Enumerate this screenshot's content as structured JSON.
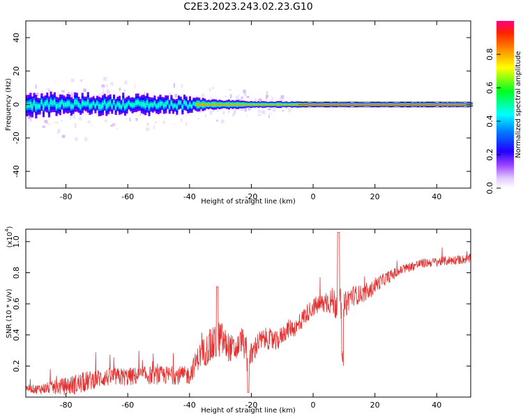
{
  "title": "C2E3.2023.243.02.23.G10",
  "chart_data": [
    {
      "type": "heatmap",
      "xlabel": "Height of straight line (km)",
      "ylabel": "Frequency (Hz)",
      "xlim": [
        -93,
        51
      ],
      "ylim": [
        -50,
        50
      ],
      "xticks": [
        -80,
        -60,
        -40,
        -20,
        0,
        20,
        40
      ],
      "yticks": [
        -40,
        -20,
        0,
        20,
        40
      ],
      "band_center_hz": 0,
      "band_halfwidth_hz": [
        [
          -93,
          6
        ],
        [
          -80,
          5
        ],
        [
          -60,
          5
        ],
        [
          -40,
          4
        ],
        [
          -35,
          3
        ],
        [
          -20,
          2
        ],
        [
          -5,
          1.5
        ],
        [
          0,
          1.2
        ],
        [
          50,
          1.2
        ]
      ],
      "colorbar": {
        "label": "Normalized spectral amplitude",
        "range": [
          0.0,
          1.0
        ],
        "ticks": [
          0.0,
          0.2,
          0.4,
          0.6,
          0.8
        ],
        "tick_labels": [
          "0.0",
          "0.2",
          "0.4",
          "0.6",
          "0.8"
        ],
        "colormap": [
          "#ffffff",
          "#e6c8ff",
          "#7a00ff",
          "#0000ff",
          "#00ffff",
          "#00ff00",
          "#ffff00",
          "#ff8000",
          "#ff0000",
          "#ff00a0"
        ]
      }
    },
    {
      "type": "line",
      "xlabel": "Height of straight line (km)",
      "ylabel": "SNR (10 * v/v)",
      "y_scale_label": "(x10",
      "y_scale_exponent": "4",
      "y_scale_suffix": ")",
      "xlim": [
        -93,
        51
      ],
      "ylim": [
        0.0,
        1.08
      ],
      "xticks": [
        -80,
        -60,
        -40,
        -20,
        0,
        20,
        40
      ],
      "yticks": [
        0.2,
        0.4,
        0.6,
        0.8,
        1.0
      ],
      "color": "#e53030",
      "series": [
        {
          "x": [
            -93,
            -90,
            -85,
            -80,
            -75,
            -70,
            -65,
            -60,
            -55,
            -50,
            -45,
            -40,
            -37,
            -35,
            -33,
            -30,
            -28,
            -25,
            -23,
            -21,
            -18,
            -15,
            -12,
            -10,
            -8,
            -5,
            -3,
            0,
            3,
            5,
            8,
            10,
            12,
            15,
            18,
            20,
            25,
            30,
            35,
            40,
            45,
            51
          ],
          "values": [
            0.06,
            0.05,
            0.06,
            0.07,
            0.09,
            0.12,
            0.13,
            0.13,
            0.14,
            0.14,
            0.14,
            0.14,
            0.26,
            0.3,
            0.32,
            0.38,
            0.33,
            0.3,
            0.38,
            0.22,
            0.35,
            0.38,
            0.35,
            0.4,
            0.44,
            0.45,
            0.52,
            0.58,
            0.6,
            0.62,
            0.6,
            0.57,
            0.65,
            0.66,
            0.67,
            0.72,
            0.78,
            0.83,
            0.86,
            0.87,
            0.88,
            0.89
          ],
          "noise": [
            0.02,
            0.03,
            0.04,
            0.06,
            0.07,
            0.06,
            0.06,
            0.06,
            0.06,
            0.06,
            0.06,
            0.06,
            0.08,
            0.1,
            0.12,
            0.12,
            0.1,
            0.08,
            0.08,
            0.1,
            0.07,
            0.07,
            0.07,
            0.06,
            0.06,
            0.06,
            0.06,
            0.06,
            0.07,
            0.08,
            0.12,
            0.1,
            0.07,
            0.06,
            0.05,
            0.05,
            0.04,
            0.03,
            0.03,
            0.03,
            0.03,
            0.03
          ]
        }
      ]
    }
  ]
}
